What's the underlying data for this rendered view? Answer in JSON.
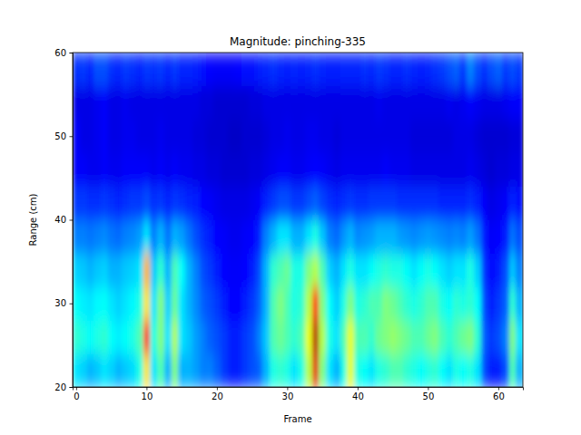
{
  "chart_data": {
    "type": "heatmap",
    "title": "Magnitude: pinching-335",
    "x_label": "Frame",
    "y_label": "Range (cm)",
    "x": [
      0,
      1,
      2,
      3,
      4,
      5,
      6,
      7,
      8,
      9,
      10,
      11,
      12,
      13,
      14,
      15,
      16,
      17,
      18,
      19,
      20,
      21,
      22,
      23,
      24,
      25,
      26,
      27,
      28,
      29,
      30,
      31,
      32,
      33,
      34,
      35,
      36,
      37,
      38,
      39,
      40,
      41,
      42,
      43,
      44,
      45,
      46,
      47,
      48,
      49,
      50,
      51,
      52,
      53,
      54,
      55,
      56,
      57,
      58,
      59,
      60,
      61,
      62,
      63
    ],
    "y_edges": [
      20,
      24,
      28,
      32,
      36,
      40,
      44,
      48,
      52,
      56,
      60
    ],
    "z": [
      [
        0.35,
        0.33,
        0.3,
        0.32,
        0.35,
        0.33,
        0.3,
        0.32,
        0.34,
        0.4,
        0.65,
        0.35,
        0.45,
        0.3,
        0.5,
        0.3,
        0.3,
        0.28,
        0.25,
        0.25,
        0.22,
        0.18,
        0.15,
        0.15,
        0.18,
        0.2,
        0.22,
        0.3,
        0.4,
        0.42,
        0.4,
        0.35,
        0.4,
        0.55,
        0.9,
        0.5,
        0.35,
        0.3,
        0.4,
        0.6,
        0.4,
        0.38,
        0.35,
        0.4,
        0.42,
        0.45,
        0.45,
        0.42,
        0.4,
        0.38,
        0.4,
        0.42,
        0.38,
        0.35,
        0.4,
        0.38,
        0.4,
        0.35,
        0.2,
        0.15,
        0.15,
        0.2,
        0.45,
        0.3
      ],
      [
        0.42,
        0.4,
        0.38,
        0.4,
        0.42,
        0.38,
        0.36,
        0.38,
        0.4,
        0.45,
        0.85,
        0.4,
        0.5,
        0.35,
        0.55,
        0.35,
        0.32,
        0.28,
        0.25,
        0.22,
        0.2,
        0.18,
        0.15,
        0.15,
        0.18,
        0.2,
        0.25,
        0.32,
        0.45,
        0.48,
        0.45,
        0.42,
        0.45,
        0.6,
        0.95,
        0.55,
        0.4,
        0.35,
        0.45,
        0.6,
        0.45,
        0.45,
        0.42,
        0.48,
        0.5,
        0.52,
        0.5,
        0.48,
        0.45,
        0.45,
        0.48,
        0.5,
        0.45,
        0.42,
        0.45,
        0.48,
        0.5,
        0.42,
        0.22,
        0.18,
        0.2,
        0.25,
        0.5,
        0.35
      ],
      [
        0.38,
        0.36,
        0.35,
        0.37,
        0.38,
        0.35,
        0.33,
        0.35,
        0.37,
        0.4,
        0.65,
        0.35,
        0.5,
        0.33,
        0.48,
        0.35,
        0.3,
        0.26,
        0.22,
        0.2,
        0.18,
        0.15,
        0.13,
        0.13,
        0.15,
        0.18,
        0.22,
        0.3,
        0.45,
        0.5,
        0.45,
        0.4,
        0.42,
        0.55,
        0.85,
        0.5,
        0.38,
        0.33,
        0.4,
        0.5,
        0.4,
        0.42,
        0.45,
        0.45,
        0.5,
        0.48,
        0.45,
        0.42,
        0.4,
        0.42,
        0.45,
        0.45,
        0.4,
        0.38,
        0.42,
        0.4,
        0.42,
        0.38,
        0.2,
        0.15,
        0.18,
        0.22,
        0.42,
        0.3
      ],
      [
        0.33,
        0.32,
        0.3,
        0.32,
        0.33,
        0.3,
        0.3,
        0.32,
        0.33,
        0.35,
        0.7,
        0.32,
        0.42,
        0.3,
        0.45,
        0.38,
        0.3,
        0.25,
        0.2,
        0.18,
        0.15,
        0.13,
        0.12,
        0.12,
        0.13,
        0.15,
        0.2,
        0.3,
        0.42,
        0.45,
        0.48,
        0.4,
        0.4,
        0.5,
        0.55,
        0.45,
        0.33,
        0.3,
        0.35,
        0.4,
        0.35,
        0.35,
        0.38,
        0.4,
        0.42,
        0.4,
        0.4,
        0.38,
        0.35,
        0.38,
        0.4,
        0.38,
        0.35,
        0.33,
        0.35,
        0.35,
        0.4,
        0.33,
        0.18,
        0.13,
        0.15,
        0.2,
        0.32,
        0.25
      ],
      [
        0.25,
        0.25,
        0.24,
        0.25,
        0.26,
        0.24,
        0.23,
        0.25,
        0.26,
        0.28,
        0.35,
        0.25,
        0.3,
        0.24,
        0.3,
        0.28,
        0.24,
        0.2,
        0.17,
        0.15,
        0.13,
        0.12,
        0.11,
        0.11,
        0.12,
        0.13,
        0.16,
        0.25,
        0.3,
        0.35,
        0.35,
        0.3,
        0.3,
        0.35,
        0.4,
        0.32,
        0.25,
        0.23,
        0.27,
        0.3,
        0.26,
        0.27,
        0.28,
        0.3,
        0.3,
        0.3,
        0.28,
        0.27,
        0.26,
        0.27,
        0.28,
        0.27,
        0.26,
        0.25,
        0.26,
        0.25,
        0.28,
        0.24,
        0.15,
        0.12,
        0.13,
        0.15,
        0.24,
        0.2
      ],
      [
        0.18,
        0.18,
        0.17,
        0.17,
        0.18,
        0.17,
        0.16,
        0.17,
        0.18,
        0.18,
        0.2,
        0.17,
        0.18,
        0.16,
        0.18,
        0.17,
        0.16,
        0.15,
        0.13,
        0.12,
        0.11,
        0.1,
        0.1,
        0.1,
        0.1,
        0.11,
        0.12,
        0.16,
        0.18,
        0.2,
        0.2,
        0.18,
        0.18,
        0.2,
        0.22,
        0.19,
        0.17,
        0.16,
        0.17,
        0.18,
        0.17,
        0.17,
        0.18,
        0.18,
        0.18,
        0.18,
        0.17,
        0.17,
        0.17,
        0.17,
        0.17,
        0.17,
        0.16,
        0.16,
        0.16,
        0.16,
        0.17,
        0.15,
        0.12,
        0.1,
        0.11,
        0.12,
        0.16,
        0.14
      ],
      [
        0.12,
        0.12,
        0.11,
        0.11,
        0.12,
        0.11,
        0.11,
        0.12,
        0.12,
        0.12,
        0.12,
        0.11,
        0.12,
        0.11,
        0.12,
        0.11,
        0.11,
        0.1,
        0.1,
        0.09,
        0.09,
        0.08,
        0.08,
        0.08,
        0.08,
        0.09,
        0.09,
        0.1,
        0.11,
        0.12,
        0.12,
        0.11,
        0.11,
        0.12,
        0.13,
        0.12,
        0.11,
        0.1,
        0.11,
        0.11,
        0.11,
        0.11,
        0.11,
        0.11,
        0.12,
        0.11,
        0.11,
        0.11,
        0.1,
        0.1,
        0.1,
        0.1,
        0.1,
        0.1,
        0.1,
        0.1,
        0.11,
        0.1,
        0.09,
        0.08,
        0.09,
        0.09,
        0.1,
        0.1
      ],
      [
        0.12,
        0.1,
        0.1,
        0.11,
        0.12,
        0.1,
        0.1,
        0.11,
        0.11,
        0.1,
        0.1,
        0.1,
        0.11,
        0.1,
        0.1,
        0.1,
        0.1,
        0.09,
        0.09,
        0.08,
        0.08,
        0.08,
        0.07,
        0.07,
        0.08,
        0.08,
        0.08,
        0.09,
        0.1,
        0.1,
        0.11,
        0.1,
        0.1,
        0.11,
        0.11,
        0.1,
        0.1,
        0.09,
        0.1,
        0.1,
        0.1,
        0.1,
        0.1,
        0.1,
        0.1,
        0.1,
        0.1,
        0.1,
        0.09,
        0.09,
        0.09,
        0.09,
        0.09,
        0.09,
        0.1,
        0.1,
        0.1,
        0.09,
        0.08,
        0.08,
        0.08,
        0.08,
        0.09,
        0.09
      ],
      [
        0.1,
        0.1,
        0.1,
        0.11,
        0.12,
        0.1,
        0.1,
        0.11,
        0.1,
        0.1,
        0.1,
        0.1,
        0.1,
        0.1,
        0.1,
        0.1,
        0.1,
        0.1,
        0.09,
        0.09,
        0.08,
        0.08,
        0.08,
        0.08,
        0.08,
        0.09,
        0.09,
        0.1,
        0.1,
        0.1,
        0.1,
        0.1,
        0.1,
        0.1,
        0.1,
        0.1,
        0.1,
        0.1,
        0.1,
        0.1,
        0.1,
        0.1,
        0.1,
        0.11,
        0.1,
        0.1,
        0.1,
        0.1,
        0.1,
        0.1,
        0.1,
        0.1,
        0.1,
        0.11,
        0.1,
        0.11,
        0.12,
        0.11,
        0.1,
        0.1,
        0.1,
        0.11,
        0.12,
        0.12
      ],
      [
        0.17,
        0.18,
        0.16,
        0.2,
        0.2,
        0.17,
        0.16,
        0.18,
        0.17,
        0.16,
        0.18,
        0.17,
        0.18,
        0.16,
        0.18,
        0.16,
        0.16,
        0.15,
        0.14,
        0.13,
        0.12,
        0.12,
        0.12,
        0.13,
        0.14,
        0.14,
        0.15,
        0.16,
        0.17,
        0.16,
        0.15,
        0.16,
        0.15,
        0.16,
        0.17,
        0.16,
        0.15,
        0.15,
        0.16,
        0.16,
        0.16,
        0.17,
        0.16,
        0.18,
        0.17,
        0.16,
        0.16,
        0.17,
        0.16,
        0.15,
        0.16,
        0.17,
        0.18,
        0.2,
        0.22,
        0.18,
        0.25,
        0.2,
        0.17,
        0.2,
        0.22,
        0.18,
        0.2,
        0.18
      ]
    ],
    "zlim": [
      0,
      1
    ],
    "xlim": [
      -0.5,
      63.5
    ],
    "ylim": [
      20,
      60
    ],
    "xticks": [
      0,
      10,
      20,
      30,
      40,
      50,
      60
    ],
    "yticks": [
      20,
      30,
      40,
      50,
      60
    ]
  }
}
